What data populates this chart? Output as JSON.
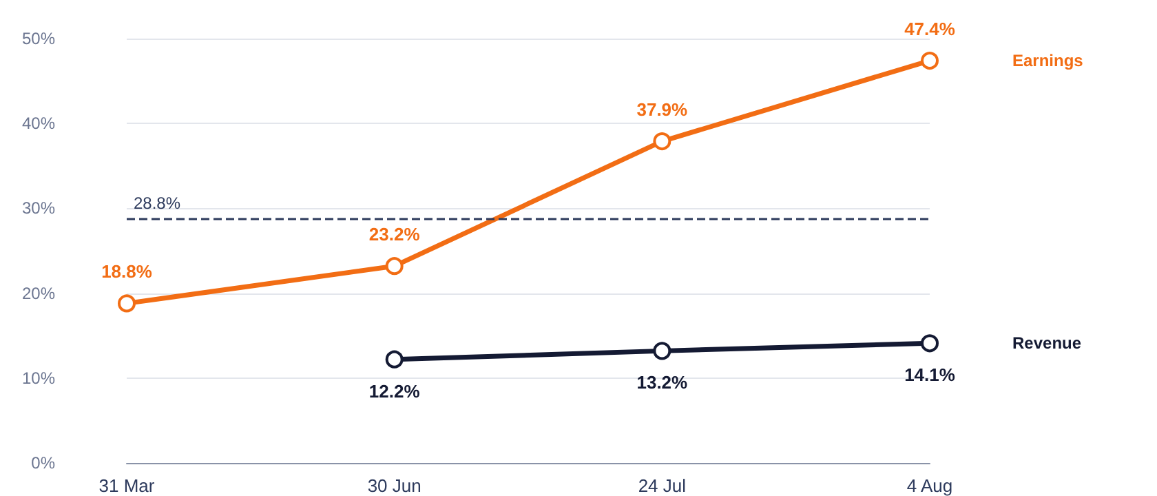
{
  "chart_data": {
    "type": "line",
    "categories": [
      "31 Mar",
      "30 Jun",
      "24 Jul",
      "4 Aug"
    ],
    "series": [
      {
        "name": "Earnings",
        "color": "#f26d14",
        "values": [
          18.8,
          23.2,
          37.9,
          47.4
        ],
        "value_labels": [
          "18.8%",
          "23.2%",
          "37.9%",
          "47.4%"
        ]
      },
      {
        "name": "Revenue",
        "color": "#141a33",
        "values": [
          null,
          12.2,
          13.2,
          14.1
        ],
        "value_labels": [
          null,
          "12.2%",
          "13.2%",
          "14.1%"
        ]
      }
    ],
    "ylim": [
      0,
      50
    ],
    "yticks": [
      {
        "value": 0,
        "label": "0%"
      },
      {
        "value": 10,
        "label": "10%"
      },
      {
        "value": 20,
        "label": "20%"
      },
      {
        "value": 30,
        "label": "30%"
      },
      {
        "value": 40,
        "label": "40%"
      },
      {
        "value": 50,
        "label": "50%"
      }
    ],
    "grid": "y",
    "marker": "circle",
    "line_style": "solid",
    "legend": false,
    "ref_lines": [
      {
        "axis": "y",
        "value": 28.8,
        "label": "28.8%",
        "color": "#2d3a5c",
        "line_style": "dashed"
      }
    ]
  }
}
